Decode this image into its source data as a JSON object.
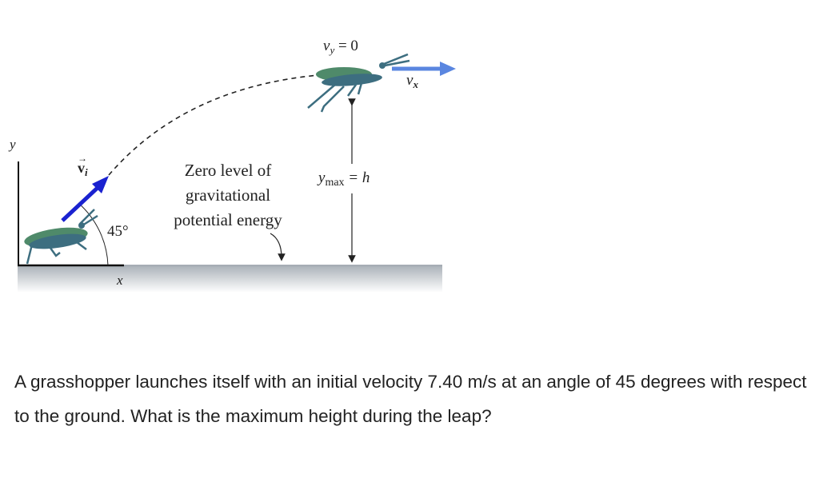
{
  "figure": {
    "axis_y_label": "y",
    "axis_x_label": "x",
    "initial_velocity_label": "v",
    "initial_velocity_subscript": "i",
    "angle_label": "45°",
    "zero_level_lines": [
      "Zero level of",
      "gravitational",
      "potential energy"
    ],
    "vy_label": "v",
    "vy_subscript": "y",
    "vy_value": " = 0",
    "vx_label": "v",
    "vx_subscript": "x",
    "ymax_label": "y",
    "ymax_subscript": "max",
    "ymax_value": " = h",
    "colors": {
      "initial_arrow": "#1a22d0",
      "vx_arrow": "#5a86e0",
      "grasshopper_body": "#3d6e80",
      "grasshopper_wing": "#4f8a6a",
      "ground": "#b8bec4"
    }
  },
  "question": {
    "text": "A grasshopper launches itself with an initial velocity 7.40 m/s at an angle of 45 degrees with respect to the ground. What is the maximum height during the leap?"
  }
}
